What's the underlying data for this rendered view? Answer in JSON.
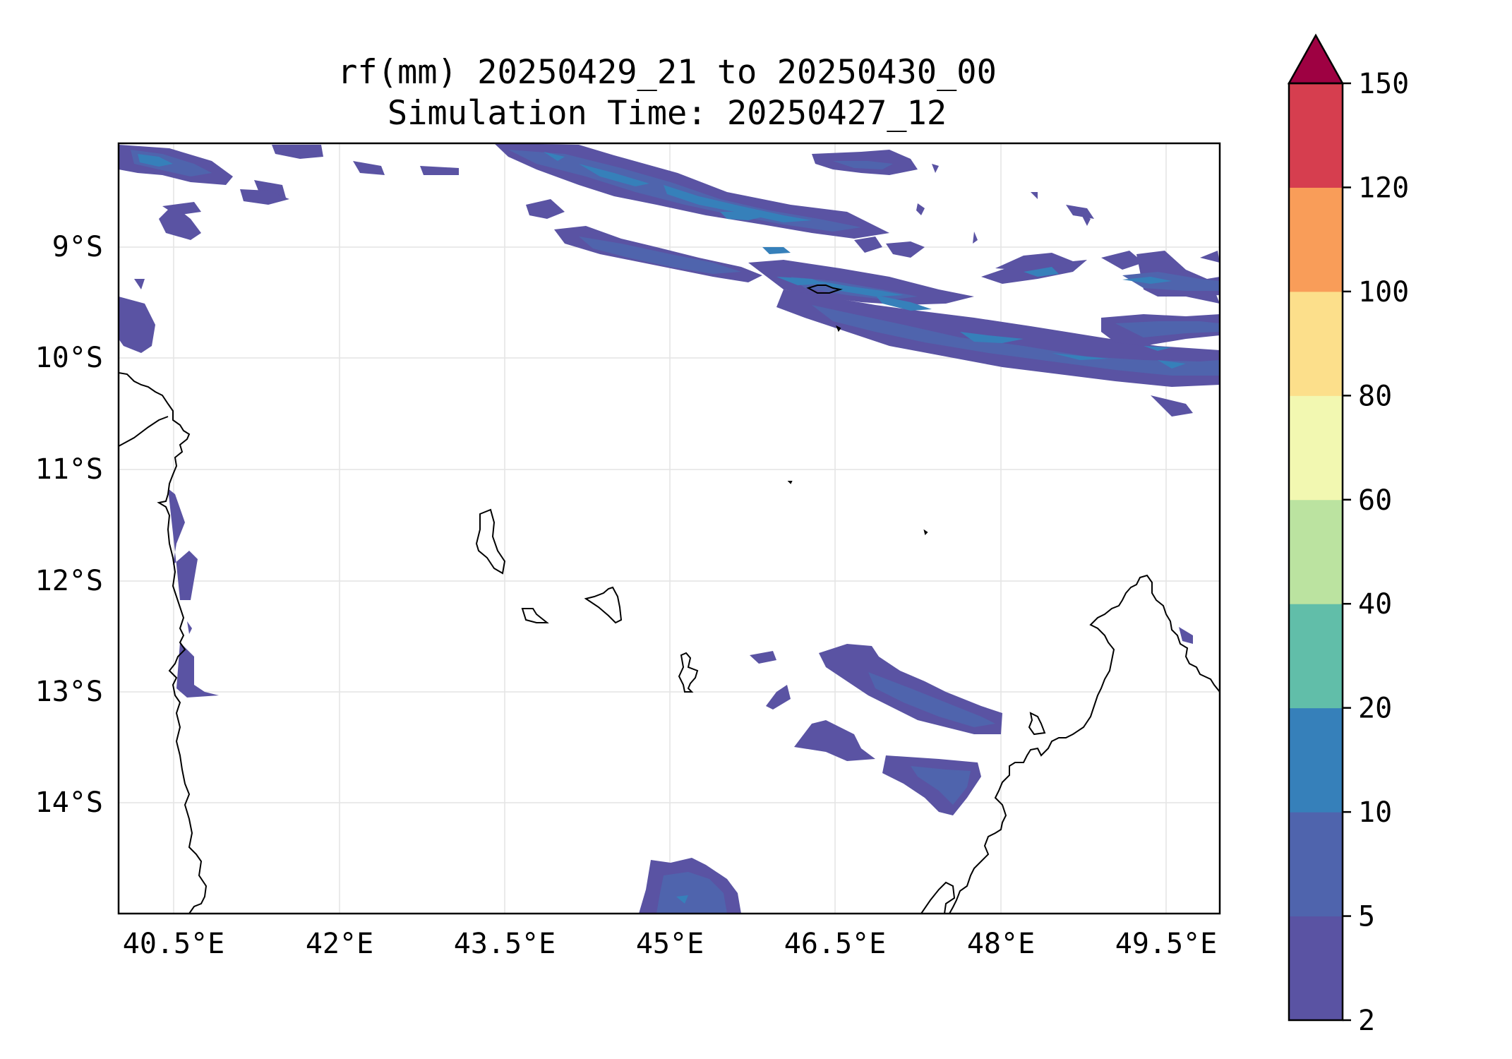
{
  "title": {
    "line1": "rf(mm) 20250429_21 to 20250430_00",
    "line2": "Simulation Time: 20250427_12"
  },
  "map": {
    "lon_range": [
      40.0,
      50.0
    ],
    "lat_range": [
      -15.0,
      -8.0
    ],
    "x_ticks": [
      "40.5°E",
      "42°E",
      "43.5°E",
      "45°E",
      "46.5°E",
      "48°E",
      "49.5°E"
    ],
    "y_ticks": [
      "9°S",
      "10°S",
      "11°S",
      "12°S",
      "13°S",
      "14°S"
    ],
    "grid": true,
    "coastline_color": "#000000"
  },
  "colorbar": {
    "levels": [
      "2",
      "5",
      "10",
      "20",
      "40",
      "60",
      "80",
      "100",
      "120",
      "150"
    ],
    "colors": [
      "#5a53a3",
      "#4f64ad",
      "#3680ba",
      "#61bea9",
      "#bbe3a0",
      "#f2f8b1",
      "#fcdf8b",
      "#f99d59",
      "#d63e4f"
    ],
    "extend_color": "#9e0142",
    "extend": "max"
  }
}
